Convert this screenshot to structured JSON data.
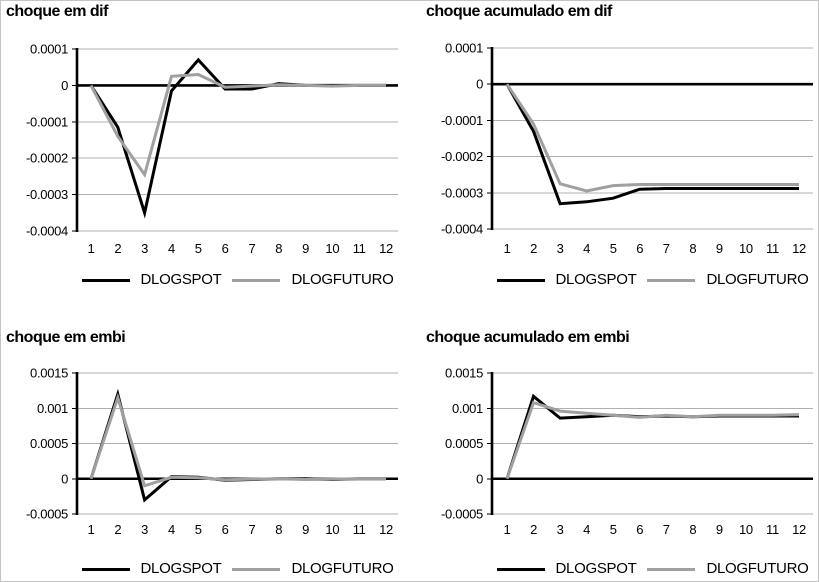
{
  "page": {
    "background": "#ffffff",
    "border_color": "#c4c4c4",
    "grid_color": "#b0b0b0",
    "axis_color": "#000000"
  },
  "chart_data": [
    {
      "type": "line",
      "title": "choque em dif",
      "x": [
        1,
        2,
        3,
        4,
        5,
        6,
        7,
        8,
        9,
        10,
        11,
        12
      ],
      "x_tick_labels": [
        "1",
        "2",
        "3",
        "4",
        "5",
        "6",
        "7",
        "8",
        "9",
        "10",
        "11",
        "12"
      ],
      "ylim": [
        -0.0004,
        0.0001
      ],
      "y_ticks": [
        0.0001,
        0,
        -0.0001,
        -0.0002,
        -0.0003,
        -0.0004
      ],
      "y_tick_labels": [
        "0.0001",
        "0",
        "-0.0001",
        "-0.0002",
        "-0.0003",
        "-0.0004"
      ],
      "grid": true,
      "legend_position": "bottom",
      "series": [
        {
          "name": "DLOGSPOT",
          "color": "#000000",
          "values": [
            0,
            -0.000115,
            -0.00035,
            -1.5e-05,
            7e-05,
            -1e-05,
            -1e-05,
            5e-06,
            0,
            0,
            0,
            0
          ]
        },
        {
          "name": "DLOGFUTURO",
          "color": "#a0a0a0",
          "values": [
            0,
            -0.00014,
            -0.000245,
            2.5e-05,
            3e-05,
            -5e-06,
            -2e-06,
            2e-06,
            0,
            -2e-06,
            0,
            0
          ]
        }
      ]
    },
    {
      "type": "line",
      "title": "choque acumulado em dif",
      "x": [
        1,
        2,
        3,
        4,
        5,
        6,
        7,
        8,
        9,
        10,
        11,
        12
      ],
      "x_tick_labels": [
        "1",
        "2",
        "3",
        "4",
        "5",
        "6",
        "7",
        "8",
        "9",
        "10",
        "11",
        "12"
      ],
      "ylim": [
        -0.0004,
        0.0001
      ],
      "y_ticks": [
        0.0001,
        0,
        -0.0001,
        -0.0002,
        -0.0003,
        -0.0004
      ],
      "y_tick_labels": [
        "0.0001",
        "0",
        "-0.0001",
        "-0.0002",
        "-0.0003",
        "-0.0004"
      ],
      "grid": true,
      "legend_position": "bottom",
      "series": [
        {
          "name": "DLOGSPOT",
          "color": "#000000",
          "values": [
            0,
            -0.00013,
            -0.00033,
            -0.000325,
            -0.000315,
            -0.00029,
            -0.000288,
            -0.000288,
            -0.000288,
            -0.000288,
            -0.000288,
            -0.000288
          ]
        },
        {
          "name": "DLOGFUTURO",
          "color": "#a0a0a0",
          "values": [
            0,
            -0.00011,
            -0.000275,
            -0.000295,
            -0.00028,
            -0.000277,
            -0.000277,
            -0.000277,
            -0.000277,
            -0.000277,
            -0.000277,
            -0.000277
          ]
        }
      ]
    },
    {
      "type": "line",
      "title": "choque em embi",
      "x": [
        1,
        2,
        3,
        4,
        5,
        6,
        7,
        8,
        9,
        10,
        11,
        12
      ],
      "x_tick_labels": [
        "1",
        "2",
        "3",
        "4",
        "5",
        "6",
        "7",
        "8",
        "9",
        "10",
        "11",
        "12"
      ],
      "ylim": [
        -0.0005,
        0.0015
      ],
      "y_ticks": [
        0.0015,
        0.001,
        0.0005,
        0,
        -0.0005
      ],
      "y_tick_labels": [
        "0.0015",
        "0.001",
        "0.0005",
        "0",
        "-0.0005"
      ],
      "grid": true,
      "legend_position": "bottom",
      "series": [
        {
          "name": "DLOGSPOT",
          "color": "#000000",
          "values": [
            0,
            0.0012,
            -0.0003,
            3e-05,
            2e-05,
            -2e-05,
            -1e-05,
            0,
            0,
            -1e-05,
            0,
            0
          ]
        },
        {
          "name": "DLOGFUTURO",
          "color": "#a0a0a0",
          "values": [
            0,
            0.00115,
            -0.0001,
            2e-05,
            1.5e-05,
            -1.5e-05,
            -5e-06,
            0,
            -1e-05,
            -5e-06,
            0,
            0
          ]
        }
      ]
    },
    {
      "type": "line",
      "title": "choque acumulado em embi",
      "x": [
        1,
        2,
        3,
        4,
        5,
        6,
        7,
        8,
        9,
        10,
        11,
        12
      ],
      "x_tick_labels": [
        "1",
        "2",
        "3",
        "4",
        "5",
        "6",
        "7",
        "8",
        "9",
        "10",
        "11",
        "12"
      ],
      "ylim": [
        -0.0005,
        0.0015
      ],
      "y_ticks": [
        0.0015,
        0.001,
        0.0005,
        0,
        -0.0005
      ],
      "y_tick_labels": [
        "0.0015",
        "0.001",
        "0.0005",
        "0",
        "-0.0005"
      ],
      "grid": true,
      "legend_position": "bottom",
      "series": [
        {
          "name": "DLOGSPOT",
          "color": "#000000",
          "values": [
            0,
            0.00117,
            0.00086,
            0.00088,
            0.0009,
            0.00088,
            0.00089,
            0.00088,
            0.00089,
            0.00089,
            0.00089,
            0.00089
          ]
        },
        {
          "name": "DLOGFUTURO",
          "color": "#a0a0a0",
          "values": [
            0,
            0.00108,
            0.00096,
            0.00093,
            0.0009,
            0.00087,
            0.0009,
            0.00088,
            0.0009,
            0.0009,
            0.0009,
            0.00091
          ]
        }
      ]
    }
  ]
}
